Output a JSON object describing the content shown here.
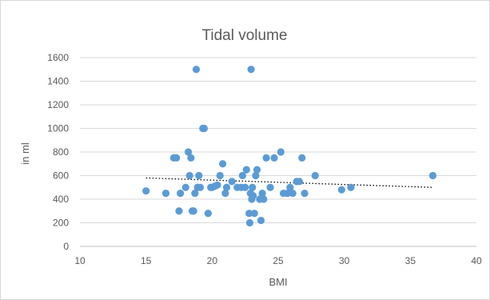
{
  "chart_data": {
    "type": "scatter",
    "title": "Tidal volume",
    "xlabel": "BMI",
    "ylabel": "in ml",
    "xlim": [
      10,
      40
    ],
    "ylim": [
      0,
      1600
    ],
    "x_ticks": [
      10,
      15,
      20,
      25,
      30,
      35,
      40
    ],
    "y_ticks": [
      0,
      200,
      400,
      600,
      800,
      1000,
      1200,
      1400,
      1600
    ],
    "grid": "horizontal",
    "legend": "none",
    "series": [
      {
        "color": "#5b9bd5",
        "points": [
          [
            15.0,
            470
          ],
          [
            16.5,
            450
          ],
          [
            17.1,
            750
          ],
          [
            17.3,
            750
          ],
          [
            17.5,
            300
          ],
          [
            17.6,
            450
          ],
          [
            18.0,
            500
          ],
          [
            18.2,
            800
          ],
          [
            18.3,
            600
          ],
          [
            18.4,
            750
          ],
          [
            18.5,
            300
          ],
          [
            18.6,
            300
          ],
          [
            18.7,
            450
          ],
          [
            18.8,
            1500
          ],
          [
            18.9,
            500
          ],
          [
            19.0,
            600
          ],
          [
            19.1,
            500
          ],
          [
            19.3,
            1000
          ],
          [
            19.4,
            1000
          ],
          [
            19.7,
            280
          ],
          [
            19.9,
            500
          ],
          [
            20.0,
            500
          ],
          [
            20.2,
            510
          ],
          [
            20.4,
            520
          ],
          [
            20.6,
            600
          ],
          [
            20.8,
            700
          ],
          [
            21.0,
            450
          ],
          [
            21.1,
            500
          ],
          [
            21.5,
            550
          ],
          [
            21.9,
            500
          ],
          [
            22.2,
            500
          ],
          [
            22.3,
            600
          ],
          [
            22.5,
            500
          ],
          [
            22.6,
            650
          ],
          [
            22.8,
            280
          ],
          [
            22.85,
            200
          ],
          [
            22.9,
            450
          ],
          [
            22.95,
            1500
          ],
          [
            23.0,
            400
          ],
          [
            23.05,
            500
          ],
          [
            23.1,
            430
          ],
          [
            23.2,
            280
          ],
          [
            23.3,
            600
          ],
          [
            23.4,
            650
          ],
          [
            23.6,
            400
          ],
          [
            23.7,
            220
          ],
          [
            23.8,
            450
          ],
          [
            23.9,
            400
          ],
          [
            24.1,
            750
          ],
          [
            24.4,
            500
          ],
          [
            24.7,
            750
          ],
          [
            25.2,
            800
          ],
          [
            25.4,
            450
          ],
          [
            25.7,
            450
          ],
          [
            25.9,
            500
          ],
          [
            26.1,
            450
          ],
          [
            26.4,
            550
          ],
          [
            26.6,
            550
          ],
          [
            26.8,
            750
          ],
          [
            27.0,
            450
          ],
          [
            27.8,
            600
          ],
          [
            29.8,
            480
          ],
          [
            30.5,
            500
          ],
          [
            36.7,
            600
          ]
        ]
      }
    ],
    "trendline": {
      "style": "dotted",
      "color": "#000000",
      "from": [
        15,
        580
      ],
      "to": [
        36.7,
        500
      ]
    }
  }
}
